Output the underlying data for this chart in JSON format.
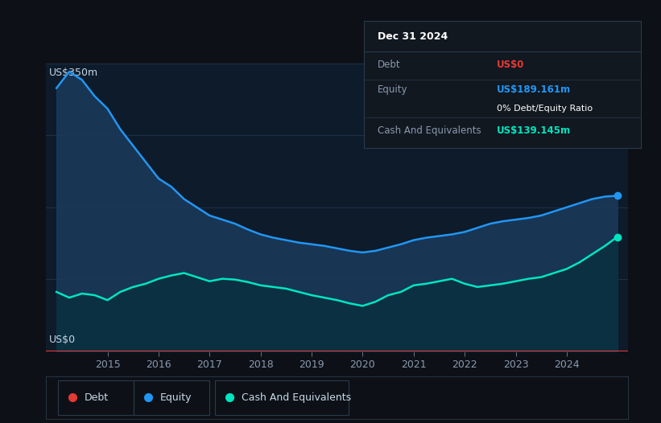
{
  "bg_color": "#0d1117",
  "plot_bg_color": "#0d1b2a",
  "grid_color": "#1e3048",
  "title_box_bg": "#111820",
  "title_box_border": "#2a3a4a",
  "equity_color": "#2196f3",
  "equity_fill": "#1a3a5c",
  "cash_color": "#00e5c0",
  "cash_fill": "#0a3040",
  "debt_color": "#e53935",
  "ylabel_top": "US$350m",
  "ylabel_bottom": "US$0",
  "x_ticks": [
    2015,
    2016,
    2017,
    2018,
    2019,
    2020,
    2021,
    2022,
    2023,
    2024
  ],
  "ylim": [
    0,
    350
  ],
  "tooltip_title": "Dec 31 2024",
  "tooltip_debt_label": "Debt",
  "tooltip_debt_value": "US$0",
  "tooltip_equity_label": "Equity",
  "tooltip_equity_value": "US$189.161m",
  "tooltip_ratio": "0% Debt/Equity Ratio",
  "tooltip_cash_label": "Cash And Equivalents",
  "tooltip_cash_value": "US$139.145m",
  "legend_items": [
    "Debt",
    "Equity",
    "Cash And Equivalents"
  ],
  "legend_colors": [
    "#e53935",
    "#2196f3",
    "#00e5c0"
  ],
  "equity_data": {
    "x": [
      2014.0,
      2014.25,
      2014.5,
      2014.75,
      2015.0,
      2015.25,
      2015.5,
      2015.75,
      2016.0,
      2016.25,
      2016.5,
      2016.75,
      2017.0,
      2017.25,
      2017.5,
      2017.75,
      2018.0,
      2018.25,
      2018.5,
      2018.75,
      2019.0,
      2019.25,
      2019.5,
      2019.75,
      2020.0,
      2020.25,
      2020.5,
      2020.75,
      2021.0,
      2021.25,
      2021.5,
      2021.75,
      2022.0,
      2022.25,
      2022.5,
      2022.75,
      2023.0,
      2023.25,
      2023.5,
      2023.75,
      2024.0,
      2024.25,
      2024.5,
      2024.75,
      2024.99
    ],
    "y": [
      320,
      340,
      330,
      310,
      295,
      270,
      250,
      230,
      210,
      200,
      185,
      175,
      165,
      160,
      155,
      148,
      142,
      138,
      135,
      132,
      130,
      128,
      125,
      122,
      120,
      122,
      126,
      130,
      135,
      138,
      140,
      142,
      145,
      150,
      155,
      158,
      160,
      162,
      165,
      170,
      175,
      180,
      185,
      188,
      189
    ]
  },
  "cash_data": {
    "x": [
      2014.0,
      2014.25,
      2014.5,
      2014.75,
      2015.0,
      2015.25,
      2015.5,
      2015.75,
      2016.0,
      2016.25,
      2016.5,
      2016.75,
      2017.0,
      2017.25,
      2017.5,
      2017.75,
      2018.0,
      2018.25,
      2018.5,
      2018.75,
      2019.0,
      2019.25,
      2019.5,
      2019.75,
      2020.0,
      2020.25,
      2020.5,
      2020.75,
      2021.0,
      2021.25,
      2021.5,
      2021.75,
      2022.0,
      2022.25,
      2022.5,
      2022.75,
      2023.0,
      2023.25,
      2023.5,
      2023.75,
      2024.0,
      2024.25,
      2024.5,
      2024.75,
      2024.99
    ],
    "y": [
      72,
      65,
      70,
      68,
      62,
      72,
      78,
      82,
      88,
      92,
      95,
      90,
      85,
      88,
      87,
      84,
      80,
      78,
      76,
      72,
      68,
      65,
      62,
      58,
      55,
      60,
      68,
      72,
      80,
      82,
      85,
      88,
      82,
      78,
      80,
      82,
      85,
      88,
      90,
      95,
      100,
      108,
      118,
      128,
      139
    ]
  },
  "debt_data": {
    "x": [
      2014.0,
      2024.99
    ],
    "y": [
      0,
      0
    ]
  }
}
